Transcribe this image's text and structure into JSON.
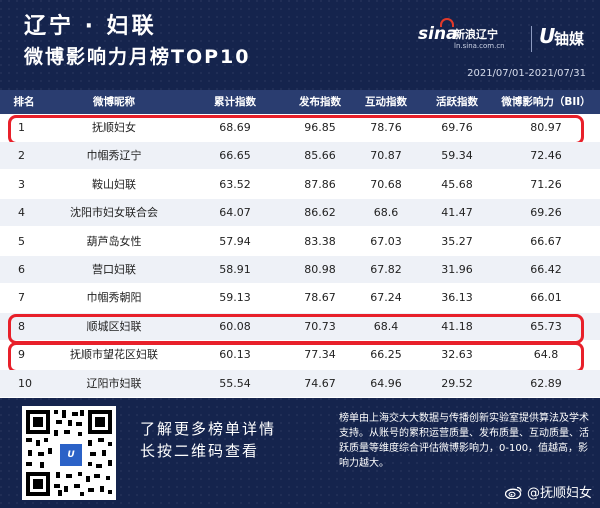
{
  "header": {
    "title_line1": "辽宁 · 妇联",
    "title_line2": "微博影响力月榜TOP10",
    "sina_logo": "sina",
    "sina_sub": "新浪辽宁",
    "sina_url": "ln.sina.com.cn",
    "brand2_icon": "U",
    "brand2": "铀媒",
    "date_range": "2021/07/01-2021/07/31"
  },
  "table": {
    "columns": [
      "排名",
      "微博昵称",
      "累计指数",
      "发布指数",
      "互动指数",
      "活跃指数",
      "微博影响力（BII）"
    ],
    "rows": [
      {
        "rank": "1",
        "name": "抚顺妇女",
        "cumulative": "68.69",
        "publish": "96.85",
        "interaction": "78.76",
        "activity": "69.76",
        "bii": "80.97",
        "highlighted": true
      },
      {
        "rank": "2",
        "name": "巾帼秀辽宁",
        "cumulative": "66.65",
        "publish": "85.66",
        "interaction": "70.87",
        "activity": "59.34",
        "bii": "72.46",
        "highlighted": false
      },
      {
        "rank": "3",
        "name": "鞍山妇联",
        "cumulative": "63.52",
        "publish": "87.86",
        "interaction": "70.68",
        "activity": "45.68",
        "bii": "71.26",
        "highlighted": false
      },
      {
        "rank": "4",
        "name": "沈阳市妇女联合会",
        "cumulative": "64.07",
        "publish": "86.62",
        "interaction": "68.6",
        "activity": "41.47",
        "bii": "69.26",
        "highlighted": false
      },
      {
        "rank": "5",
        "name": "葫芦岛女性",
        "cumulative": "57.94",
        "publish": "83.38",
        "interaction": "67.03",
        "activity": "35.27",
        "bii": "66.67",
        "highlighted": false
      },
      {
        "rank": "6",
        "name": "营口妇联",
        "cumulative": "58.91",
        "publish": "80.98",
        "interaction": "67.82",
        "activity": "31.96",
        "bii": "66.42",
        "highlighted": false
      },
      {
        "rank": "7",
        "name": "巾帼秀朝阳",
        "cumulative": "59.13",
        "publish": "78.67",
        "interaction": "67.24",
        "activity": "36.13",
        "bii": "66.01",
        "highlighted": false
      },
      {
        "rank": "8",
        "name": "顺城区妇联",
        "cumulative": "60.08",
        "publish": "70.73",
        "interaction": "68.4",
        "activity": "41.18",
        "bii": "65.73",
        "highlighted": true
      },
      {
        "rank": "9",
        "name": "抚顺市望花区妇联",
        "cumulative": "60.13",
        "publish": "77.34",
        "interaction": "66.25",
        "activity": "32.63",
        "bii": "64.8",
        "highlighted": true
      },
      {
        "rank": "10",
        "name": "辽阳市妇联",
        "cumulative": "55.54",
        "publish": "74.67",
        "interaction": "64.96",
        "activity": "29.52",
        "bii": "62.89",
        "highlighted": false
      }
    ]
  },
  "footer": {
    "more_line1": "了解更多榜单详情",
    "more_line2": "长按二维码查看",
    "note": "榜单由上海交大大数据与传播创新实验室提供算法及学术支持。从账号的累积运营质量、发布质量、互动质量、活跃质量等维度综合评估微博影响力，0-100，值越高，影响力越大。",
    "qr_center": "U",
    "watermark": "@抚顺妇女"
  },
  "colors": {
    "header_bg": "#15244d",
    "table_head_bg": "#2a3d70",
    "highlight": "#e8202a",
    "row_alt": "#eef1f7"
  }
}
